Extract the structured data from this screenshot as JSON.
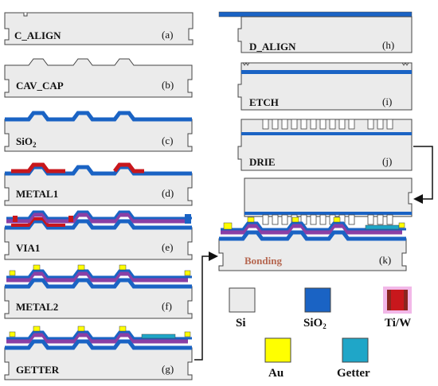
{
  "steps": {
    "a": {
      "label": "C_ALIGN",
      "tag": "(a)"
    },
    "b": {
      "label": "CAV_CAP",
      "tag": "(b)"
    },
    "c": {
      "label_main": "SiO",
      "label_sub": "2",
      "tag": "(c)"
    },
    "d": {
      "label": "METAL1",
      "tag": "(d)"
    },
    "e": {
      "label": "VIA1",
      "tag": "(e)"
    },
    "f": {
      "label": "METAL2",
      "tag": "(f)"
    },
    "g": {
      "label": "GETTER",
      "tag": "(g)"
    },
    "h": {
      "label": "D_ALIGN",
      "tag": "(h)"
    },
    "i": {
      "label": "ETCH",
      "tag": "(i)"
    },
    "j": {
      "label": "DRIE",
      "tag": "(j)"
    },
    "k": {
      "label": "Bonding",
      "tag": "(k)"
    }
  },
  "legend": {
    "si": {
      "label": "Si",
      "color": "#ebebeb"
    },
    "sio2": {
      "label_main": "SiO",
      "label_sub": "2",
      "color": "#1a63c4"
    },
    "tiw": {
      "label": "Ti/W",
      "color": "#c8171c"
    },
    "au": {
      "label": "Au",
      "color": "#ffff00"
    },
    "getter": {
      "label": "Getter",
      "color": "#1fa6c8"
    }
  },
  "colors": {
    "metal2": "#8a3fa5",
    "outline": "#444444"
  }
}
